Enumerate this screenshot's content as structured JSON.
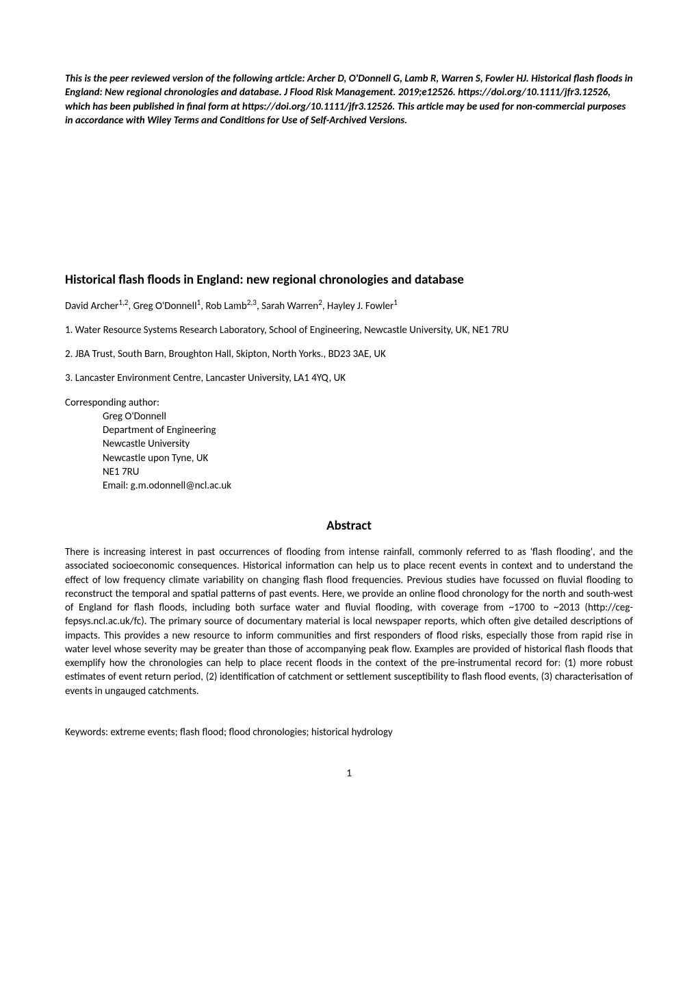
{
  "preface": "This is the peer reviewed version of the following article: Archer D, O'Donnell G, Lamb R, Warren S, Fowler HJ. Historical flash floods in England: New regional chronologies and database. J Flood Risk Management. 2019;e12526. https://doi.org/10.1111/jfr3.12526, which has been published in final form at https://doi.org/10.1111/jfr3.12526. This article may be used for non-commercial purposes in accordance with Wiley Terms and Conditions for Use of Self-Archived Versions.",
  "title": "Historical flash floods in England: new regional chronologies and database",
  "authors_html": "David Archer<sup>1,2</sup>, Greg O'Donnell<sup>1</sup>, Rob Lamb<sup>2,3</sup>, Sarah Warren<sup>2</sup>, Hayley J. Fowler<sup>1</sup>",
  "affiliations": [
    "1. Water Resource Systems Research Laboratory, School of Engineering, Newcastle University, UK, NE1 7RU",
    "2. JBA Trust, South Barn, Broughton Hall, Skipton, North Yorks., BD23 3AE, UK",
    "3. Lancaster Environment Centre, Lancaster University, LA1 4YQ, UK"
  ],
  "corresponding": {
    "label": "Corresponding author:",
    "lines": [
      "Greg O'Donnell",
      "Department of Engineering",
      "Newcastle University",
      "Newcastle upon Tyne, UK",
      "NE1 7RU",
      "Email: g.m.odonnell@ncl.ac.uk"
    ]
  },
  "abstract_heading": "Abstract",
  "abstract_body": "There is increasing interest in past occurrences of flooding from intense rainfall, commonly referred to as 'flash flooding', and the associated socioeconomic consequences. Historical information can help us to place recent events in context and to understand the effect of low frequency climate variability on changing flash flood frequencies. Previous studies have focussed on fluvial flooding to reconstruct the temporal and spatial patterns of past events.  Here, we provide an online flood chronology for the north and south-west of England for flash floods, including both surface water and fluvial flooding, with coverage from ~1700 to ~2013 (http://ceg-fepsys.ncl.ac.uk/fc). The primary source of documentary material is local newspaper reports, which often give detailed descriptions of impacts. This provides a new resource to inform communities and first responders of flood risks, especially those from rapid rise in water level whose severity may be greater than those of accompanying peak flow. Examples are provided of historical flash floods that exemplify how the chronologies can help to place recent floods in the context of the pre-instrumental record for: (1) more robust estimates of event return period, (2) identification of catchment or settlement susceptibility to flash flood events, (3) characterisation of events in ungauged catchments.",
  "keywords": "Keywords: extreme events; flash flood; flood chronologies; historical hydrology",
  "page_number": "1"
}
